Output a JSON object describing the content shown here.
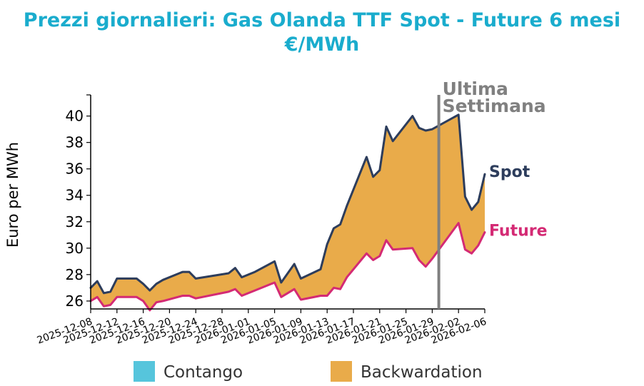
{
  "chart_data": {
    "type": "area",
    "title": "Prezzi giornalieri: Gas Olanda TTF Spot - Future 6 mesi",
    "subtitle": "€/MWh",
    "ylabel": "Euro per MWh",
    "xlabel": "",
    "ylim": [
      25.4,
      41.6
    ],
    "yticks": [
      26,
      28,
      30,
      32,
      34,
      36,
      38,
      40
    ],
    "x_start": "2025-12-08",
    "x_end": "2026-02-06",
    "xticks": [
      "2025-12-08",
      "2025-12-12",
      "2025-12-16",
      "2025-12-20",
      "2025-12-24",
      "2025-12-28",
      "2026-01-01",
      "2026-01-05",
      "2026-01-09",
      "2026-01-13",
      "2026-01-17",
      "2026-01-21",
      "2026-01-25",
      "2026-01-29",
      "2026-02-02",
      "2026-02-06"
    ],
    "x": [
      "2025-12-08",
      "2025-12-09",
      "2025-12-10",
      "2025-12-11",
      "2025-12-12",
      "2025-12-15",
      "2025-12-16",
      "2025-12-17",
      "2025-12-18",
      "2025-12-19",
      "2025-12-22",
      "2025-12-23",
      "2025-12-24",
      "2025-12-29",
      "2025-12-30",
      "2025-12-31",
      "2026-01-02",
      "2026-01-05",
      "2026-01-06",
      "2026-01-07",
      "2026-01-08",
      "2026-01-09",
      "2026-01-12",
      "2026-01-13",
      "2026-01-14",
      "2026-01-15",
      "2026-01-16",
      "2026-01-19",
      "2026-01-20",
      "2026-01-21",
      "2026-01-22",
      "2026-01-23",
      "2026-01-26",
      "2026-01-27",
      "2026-01-28",
      "2026-01-29",
      "2026-02-02",
      "2026-02-03",
      "2026-02-04",
      "2026-02-05",
      "2026-02-06"
    ],
    "series": [
      {
        "name": "Spot",
        "color": "#2d3d5c",
        "values": [
          27.0,
          27.5,
          26.6,
          26.7,
          27.7,
          27.7,
          27.3,
          26.8,
          27.3,
          27.6,
          28.2,
          28.2,
          27.7,
          28.1,
          28.5,
          27.8,
          28.2,
          29.0,
          27.4,
          28.1,
          28.8,
          27.7,
          28.4,
          30.3,
          31.5,
          31.8,
          33.2,
          36.9,
          35.4,
          35.9,
          39.2,
          38.1,
          40.0,
          39.1,
          38.9,
          39.0,
          40.1,
          33.9,
          32.9,
          33.5,
          35.6
        ]
      },
      {
        "name": "Future",
        "color": "#d42a74",
        "values": [
          26.0,
          26.3,
          25.6,
          25.7,
          26.3,
          26.3,
          26.0,
          25.3,
          25.9,
          26.0,
          26.4,
          26.4,
          26.2,
          26.7,
          26.9,
          26.4,
          26.8,
          27.4,
          26.3,
          26.6,
          26.9,
          26.1,
          26.4,
          26.4,
          27.0,
          26.9,
          27.8,
          29.6,
          29.1,
          29.4,
          30.6,
          29.9,
          30.0,
          29.1,
          28.6,
          29.2,
          31.9,
          29.9,
          29.6,
          30.2,
          31.2
        ]
      }
    ],
    "fill_between_colors": {
      "contango": "#56c5dc",
      "backwardation": "#e9ab4a"
    },
    "legend": [
      {
        "label": "Contango",
        "color": "#56c5dc"
      },
      {
        "label": "Backwardation",
        "color": "#e9ab4a"
      }
    ],
    "legend_position": "bottom",
    "vline": {
      "x": "2026-01-30",
      "label_1": "Ultima",
      "label_2": "Settimana",
      "color": "#808080"
    },
    "end_labels": [
      {
        "text": "Spot",
        "color": "#2d3d5c"
      },
      {
        "text": "Future",
        "color": "#d42a74"
      }
    ]
  }
}
